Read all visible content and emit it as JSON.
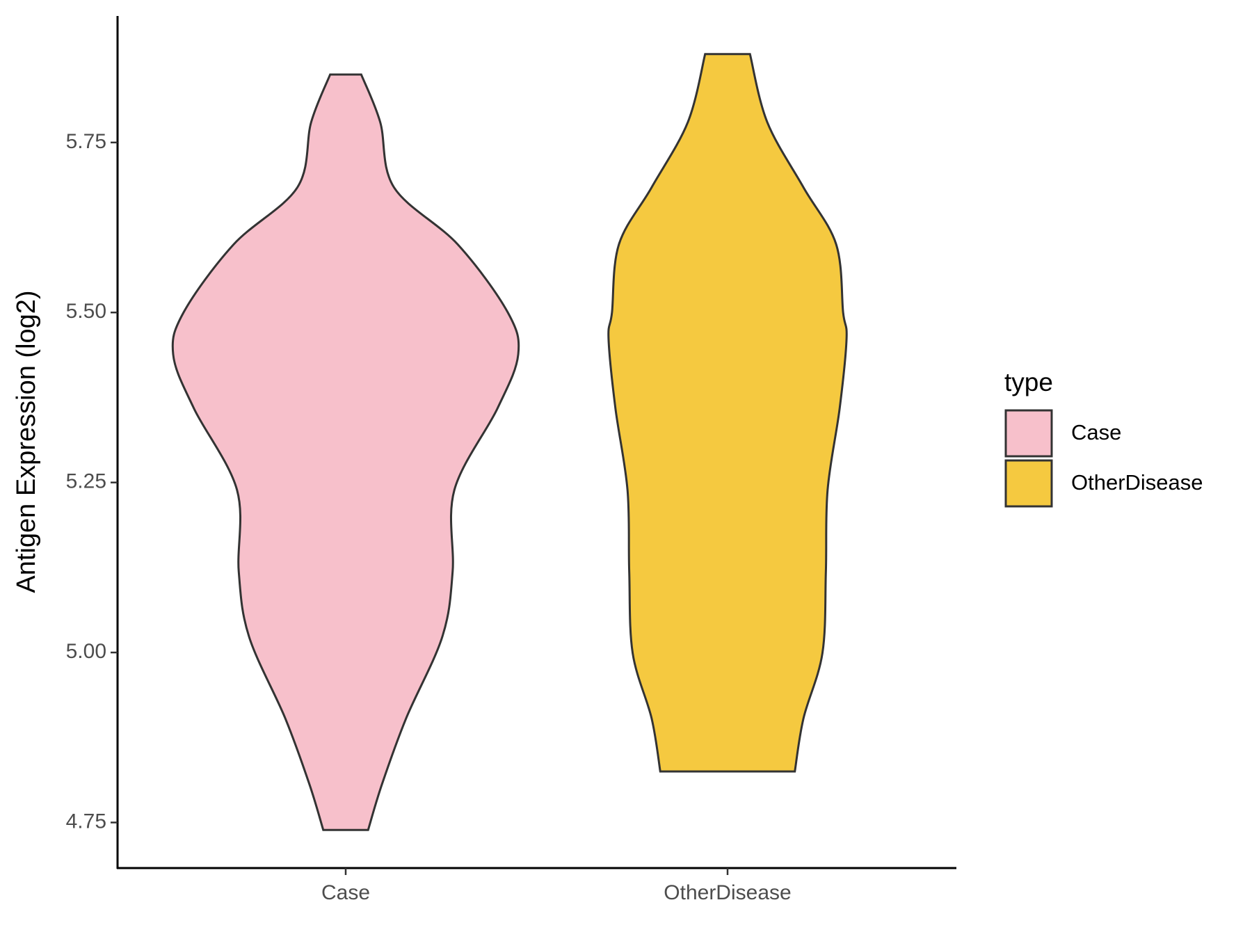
{
  "chart_data": {
    "type": "violin",
    "ylabel": "Antigen Expression (log2)",
    "categories": [
      "Case",
      "OtherDisease"
    ],
    "legend_title": "type",
    "legend": "right",
    "ylim": [
      4.683,
      5.936
    ],
    "yticks": [
      {
        "value": 4.75,
        "label": "4.75"
      },
      {
        "value": 5,
        "label": "5.00"
      },
      {
        "value": 5.25,
        "label": "5.25"
      },
      {
        "value": 5.5,
        "label": "5.50"
      },
      {
        "value": 5.75,
        "label": "5.75"
      }
    ],
    "series": [
      {
        "name": "Case",
        "color": "#f7c0cb",
        "y": [
          5.85,
          5.78,
          5.684,
          5.6,
          5.5,
          5.438,
          5.359,
          5.239,
          5.119,
          5.023,
          4.903,
          4.806,
          4.739
        ],
        "widths": [
          0.09,
          0.2,
          0.28,
          0.65,
          0.94,
          1.0,
          0.88,
          0.63,
          0.62,
          0.56,
          0.35,
          0.21,
          0.13
        ]
      },
      {
        "name": "OtherDisease",
        "color": "#f5c940",
        "y": [
          5.88,
          5.78,
          5.684,
          5.6,
          5.5,
          5.462,
          5.359,
          5.239,
          5.119,
          4.999,
          4.903,
          4.825
        ],
        "widths": [
          0.13,
          0.23,
          0.44,
          0.63,
          0.67,
          0.69,
          0.65,
          0.58,
          0.57,
          0.55,
          0.44,
          0.39
        ]
      }
    ]
  }
}
